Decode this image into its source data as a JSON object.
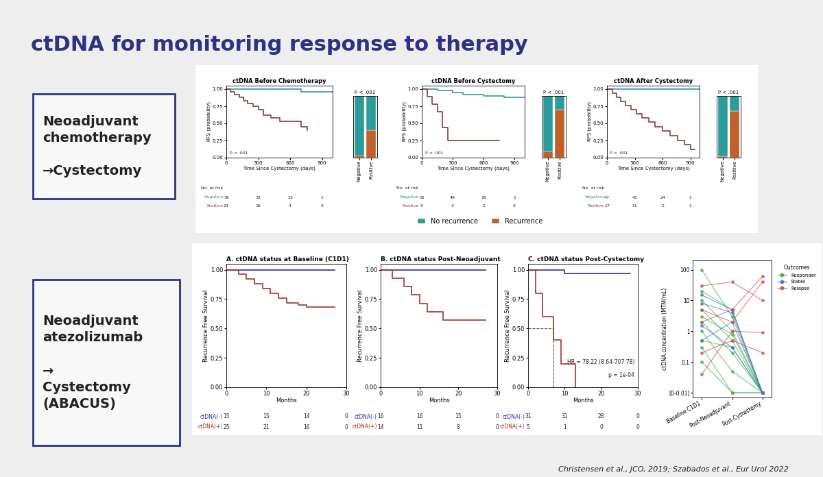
{
  "slide": {
    "title": "ctDNA for monitoring response to therapy",
    "row_labels": [
      "Neoadjuvant\nchemotherapy\n\n→Cystectomy",
      "Neoadjuvant\natezolizumab\n\n→\nCystectomy\n(ABACUS)"
    ],
    "citation": "Christensen et al., JCO, 2019; Szabados et al., Eur Urol 2022"
  },
  "chart_data": [
    {
      "type": "step",
      "title": "ctDNA Before Chemotherapy",
      "x_label": "Time Since Cystectomy (days)",
      "y_label": "RFS (probability)",
      "xlim": [
        0,
        1000
      ],
      "xticks": [
        0,
        300,
        600,
        900
      ],
      "ylim": [
        0,
        1.05
      ],
      "yticks": [
        {
          "value": 0,
          "label": "0.00"
        },
        {
          "value": 0.25,
          "label": "0.25"
        },
        {
          "value": 0.5,
          "label": "0.50"
        },
        {
          "value": 0.75,
          "label": "0.75"
        },
        {
          "value": 1,
          "label": "1.00"
        }
      ],
      "annotations": [
        "P < .001"
      ],
      "at_risk_title": "No. at risk",
      "at_risk_times": [
        0,
        300,
        600,
        900
      ],
      "series": [
        {
          "name": "Negative",
          "color": "#2a9d9b",
          "x": [
            0,
            500,
            700,
            1000
          ],
          "values": [
            1.0,
            1.0,
            0.96,
            0.96
          ],
          "at_risk": [
            36,
            32,
            23,
            1
          ]
        },
        {
          "name": "Positive",
          "color": "#8c3b3b",
          "x": [
            0,
            40,
            80,
            120,
            160,
            200,
            250,
            300,
            350,
            420,
            500,
            600,
            700,
            760
          ],
          "values": [
            1.0,
            0.96,
            0.92,
            0.88,
            0.83,
            0.79,
            0.75,
            0.7,
            0.62,
            0.58,
            0.53,
            0.53,
            0.45,
            0.4
          ],
          "at_risk": [
            24,
            16,
            4,
            0
          ]
        }
      ]
    },
    {
      "type": "bar",
      "stacked": true,
      "title": "P < .001",
      "categories": [
        "Negative",
        "Positive"
      ],
      "ylim": [
        0,
        1
      ],
      "tick_labels": "x",
      "legend": "lower center",
      "series": [
        {
          "name": "Recurrence",
          "color": "#c0612b",
          "values": [
            0.03,
            0.45
          ]
        },
        {
          "name": "No recurrence",
          "color": "#2a9d9b",
          "values": [
            0.97,
            0.55
          ]
        }
      ]
    },
    {
      "type": "step",
      "title": "ctDNA Before Cystectomy",
      "x_label": "Time Since Cystectomy (days)",
      "y_label": "RFS (probability)",
      "xlim": [
        0,
        1000
      ],
      "xticks": [
        0,
        300,
        600,
        900
      ],
      "ylim": [
        0,
        1.05
      ],
      "yticks": [
        {
          "value": 0,
          "label": "0.00"
        },
        {
          "value": 0.25,
          "label": "0.25"
        },
        {
          "value": 0.5,
          "label": "0.50"
        },
        {
          "value": 0.75,
          "label": "0.75"
        },
        {
          "value": 1,
          "label": "1.00"
        }
      ],
      "annotations": [
        "P < .001"
      ],
      "at_risk_title": "No. at risk",
      "at_risk_times": [
        0,
        300,
        600,
        900
      ],
      "series": [
        {
          "name": "Negative",
          "color": "#2a9d9b",
          "x": [
            0,
            150,
            300,
            400,
            600,
            800,
            1000
          ],
          "values": [
            1.0,
            0.98,
            0.95,
            0.92,
            0.9,
            0.88,
            0.88
          ],
          "at_risk": [
            55,
            49,
            26,
            1
          ]
        },
        {
          "name": "Positive",
          "color": "#8c3b3b",
          "x": [
            0,
            50,
            100,
            150,
            200,
            250,
            750
          ],
          "values": [
            1.0,
            0.89,
            0.78,
            0.67,
            0.44,
            0.25,
            0.25
          ],
          "at_risk": [
            9,
            3,
            2,
            0
          ]
        }
      ]
    },
    {
      "type": "bar",
      "stacked": true,
      "title": "P < .001",
      "categories": [
        "Negative",
        "Positive"
      ],
      "ylim": [
        0,
        1
      ],
      "tick_labels": "x",
      "series": [
        {
          "name": "Recurrence",
          "color": "#c0612b",
          "values": [
            0.1,
            0.78
          ]
        },
        {
          "name": "No recurrence",
          "color": "#2a9d9b",
          "values": [
            0.9,
            0.22
          ]
        }
      ]
    },
    {
      "type": "step",
      "title": "ctDNA After Cystectomy",
      "x_label": "Time Since Cystectomy (days)",
      "y_label": "RFS (probability)",
      "xlim": [
        0,
        1000
      ],
      "xticks": [
        0,
        300,
        600,
        900
      ],
      "ylim": [
        0,
        1.05
      ],
      "yticks": [
        {
          "value": 0,
          "label": "0.00"
        },
        {
          "value": 0.25,
          "label": "0.25"
        },
        {
          "value": 0.5,
          "label": "0.50"
        },
        {
          "value": 0.75,
          "label": "0.75"
        },
        {
          "value": 1,
          "label": "1.00"
        }
      ],
      "annotations": [
        "P < .001"
      ],
      "at_risk_title": "No. at risk",
      "at_risk_times": [
        0,
        300,
        600,
        900
      ],
      "series": [
        {
          "name": "Negative",
          "color": "#2a9d9b",
          "x": [
            0,
            1000
          ],
          "values": [
            1.0,
            1.0
          ],
          "at_risk": [
            47,
            42,
            24,
            1
          ]
        },
        {
          "name": "Positive",
          "color": "#8c3b3b",
          "x": [
            0,
            60,
            100,
            150,
            200,
            260,
            320,
            380,
            450,
            520,
            600,
            680,
            760,
            840,
            900,
            950
          ],
          "values": [
            1.0,
            0.94,
            0.88,
            0.82,
            0.76,
            0.7,
            0.64,
            0.58,
            0.52,
            0.45,
            0.39,
            0.32,
            0.25,
            0.19,
            0.12,
            0.12
          ],
          "at_risk": [
            17,
            11,
            2,
            1
          ]
        }
      ]
    },
    {
      "type": "bar",
      "stacked": true,
      "title": "P < .001",
      "categories": [
        "Negative",
        "Positive"
      ],
      "ylim": [
        0,
        1
      ],
      "tick_labels": "x",
      "series": [
        {
          "name": "Recurrence",
          "color": "#c0612b",
          "values": [
            0.02,
            0.76
          ]
        },
        {
          "name": "No recurrence",
          "color": "#2a9d9b",
          "values": [
            0.98,
            0.24
          ]
        }
      ]
    },
    {
      "type": "step",
      "title": "A. ctDNA status at Baseline (C1D1)",
      "x_label": "Months",
      "y_label": "Recurrence Free Survival",
      "xlim": [
        0,
        30
      ],
      "xticks": [
        0,
        10,
        20,
        30
      ],
      "ylim": [
        0,
        1.05
      ],
      "yticks": [
        {
          "value": 0,
          "label": "0.00"
        },
        {
          "value": 0.25,
          "label": "0.25"
        },
        {
          "value": 0.5,
          "label": "0.50"
        },
        {
          "value": 0.75,
          "label": "0.75"
        },
        {
          "value": 1,
          "label": "1.00"
        }
      ],
      "at_risk_times": [
        0,
        10,
        20,
        30
      ],
      "series": [
        {
          "name": "ctDNA(-)",
          "color": "#2b2f9e",
          "x": [
            0,
            27
          ],
          "values": [
            1.0,
            1.0
          ],
          "at_risk": [
            15,
            15,
            14,
            0
          ]
        },
        {
          "name": "ctDNA(+)",
          "color": "#a33327",
          "x": [
            0,
            3,
            5,
            7,
            9,
            11,
            13,
            15,
            18,
            20,
            27
          ],
          "values": [
            1.0,
            0.96,
            0.92,
            0.88,
            0.84,
            0.8,
            0.76,
            0.72,
            0.7,
            0.68,
            0.68
          ],
          "at_risk": [
            25,
            21,
            16,
            0
          ]
        }
      ]
    },
    {
      "type": "step",
      "title": "B. ctDNA status Post-Neoadjuvant",
      "x_label": "Months",
      "y_label": "Recurrence Free Survival",
      "xlim": [
        0,
        30
      ],
      "xticks": [
        0,
        10,
        20,
        30
      ],
      "ylim": [
        0,
        1.05
      ],
      "yticks": [
        {
          "value": 0,
          "label": "0.00"
        },
        {
          "value": 0.25,
          "label": "0.25"
        },
        {
          "value": 0.5,
          "label": "0.50"
        },
        {
          "value": 0.75,
          "label": "0.75"
        },
        {
          "value": 1,
          "label": "1.00"
        }
      ],
      "at_risk_times": [
        0,
        10,
        20,
        30
      ],
      "series": [
        {
          "name": "ctDNA(-)",
          "color": "#2b2f9e",
          "x": [
            0,
            27
          ],
          "values": [
            1.0,
            1.0
          ],
          "at_risk": [
            16,
            16,
            15,
            0
          ]
        },
        {
          "name": "ctDNA(+)",
          "color": "#a33327",
          "x": [
            0,
            3,
            6,
            8,
            10,
            12,
            16,
            27
          ],
          "values": [
            1.0,
            0.93,
            0.86,
            0.79,
            0.71,
            0.64,
            0.57,
            0.57
          ],
          "at_risk": [
            14,
            11,
            8,
            0
          ]
        }
      ]
    },
    {
      "type": "step",
      "title": "C. ctDNA status Post-Cystectomy",
      "x_label": "Months",
      "y_label": "Recurrence Free Survival",
      "xlim": [
        0,
        30
      ],
      "xticks": [
        0,
        10,
        20,
        30
      ],
      "ylim": [
        0,
        1.05
      ],
      "yticks": [
        {
          "value": 0,
          "label": "0.00"
        },
        {
          "value": 0.25,
          "label": "0.25"
        },
        {
          "value": 0.5,
          "label": "0.50"
        },
        {
          "value": 0.75,
          "label": "0.75"
        },
        {
          "value": 1,
          "label": "1.00"
        }
      ],
      "annotations": [
        "HR = 78.22 (8.64-707.78)",
        "p = 1e-04"
      ],
      "median_line": {
        "x": 7,
        "y": 0.5
      },
      "at_risk_times": [
        0,
        10,
        20,
        30
      ],
      "series": [
        {
          "name": "ctDNA(-)",
          "color": "#2b2f9e",
          "x": [
            0,
            10,
            28
          ],
          "values": [
            1.0,
            0.97,
            0.97
          ],
          "at_risk": [
            31,
            31,
            28,
            0
          ]
        },
        {
          "name": "ctDNA(+)",
          "color": "#a33327",
          "x": [
            0,
            2,
            4,
            7,
            9,
            11,
            13
          ],
          "values": [
            1.0,
            0.8,
            0.6,
            0.4,
            0.2,
            0.2,
            0.0
          ],
          "at_risk": [
            5,
            1,
            0,
            0
          ]
        }
      ]
    },
    {
      "type": "line",
      "log": "y",
      "y_label": "ctDNA concentration (MTM/mL)",
      "marker": "o",
      "legend": "right",
      "legend_title": "Outcomes",
      "categories": [
        "Baseline C1D1",
        "Post-Neoadjuvant",
        "Post-Cystectomy"
      ],
      "ylim": [
        0.007,
        200
      ],
      "yticks": [
        {
          "value": 0.01,
          "label": "[0-0.01]"
        },
        0.1,
        1,
        10,
        100
      ],
      "groups": [
        {
          "name": "Responder",
          "color": "#3cb44b",
          "lines": [
            [
              100,
              3,
              0.01
            ],
            [
              20,
              5,
              0.01
            ],
            [
              10,
              1,
              0.01
            ],
            [
              5,
              0.5,
              0.01
            ],
            [
              2,
              0.2,
              0.01
            ],
            [
              1,
              0.05,
              0.01
            ],
            [
              0.3,
              0.01,
              0.01
            ],
            [
              0.5,
              0.3,
              0.01
            ],
            [
              0.1,
              0.01,
              0.01
            ],
            [
              3,
              0.8,
              0.01
            ]
          ]
        },
        {
          "name": "Stable",
          "color": "#4a6fd0",
          "lines": [
            [
              8,
              4,
              0.01
            ],
            [
              0.5,
              2,
              0.01
            ],
            [
              15,
              5,
              0.01
            ],
            [
              1.5,
              0.3,
              0.01
            ]
          ]
        },
        {
          "name": "Relapse",
          "color": "#d0504a",
          "lines": [
            [
              5,
              2,
              40
            ],
            [
              30,
              40,
              10
            ],
            [
              0.2,
              0.5,
              0.2
            ],
            [
              2,
              5,
              60
            ],
            [
              0.04,
              1,
              0.9
            ]
          ]
        }
      ]
    }
  ]
}
